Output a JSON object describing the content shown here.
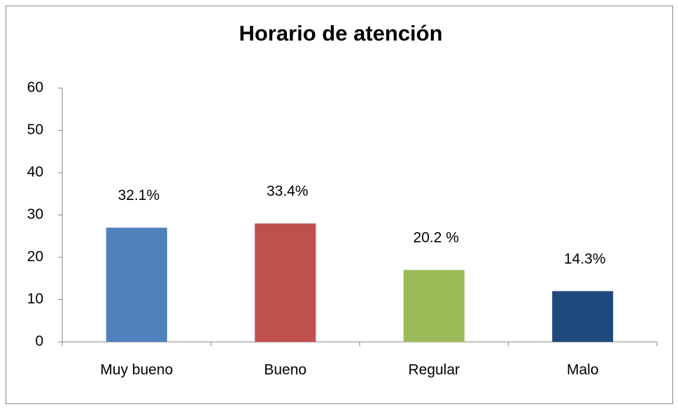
{
  "chart_data": {
    "type": "bar",
    "title": "Horario de atención",
    "categories": [
      "Muy bueno",
      "Bueno",
      "Regular",
      "Malo"
    ],
    "values": [
      27,
      28,
      17,
      12
    ],
    "colors": [
      "#4f81bd",
      "#c0504d",
      "#9bbb59",
      "#1f497d"
    ],
    "annotations": [
      "32.1%",
      "33.4%",
      "20.2 %",
      "14.3%"
    ],
    "ylim": [
      0,
      60
    ],
    "yticks": [
      0,
      10,
      20,
      30,
      40,
      50,
      60
    ],
    "grid": false
  }
}
